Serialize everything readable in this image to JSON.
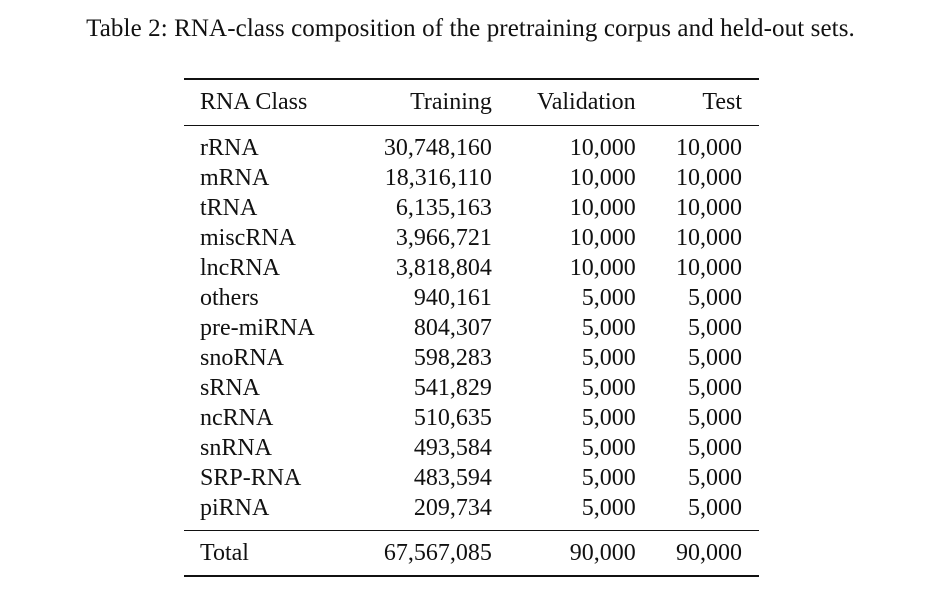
{
  "caption": "Table 2: RNA-class composition of the pretraining corpus and held-out sets.",
  "table": {
    "headers": [
      "RNA Class",
      "Training",
      "Validation",
      "Test"
    ],
    "rows": [
      [
        "rRNA",
        "30,748,160",
        "10,000",
        "10,000"
      ],
      [
        "mRNA",
        "18,316,110",
        "10,000",
        "10,000"
      ],
      [
        "tRNA",
        "6,135,163",
        "10,000",
        "10,000"
      ],
      [
        "miscRNA",
        "3,966,721",
        "10,000",
        "10,000"
      ],
      [
        "lncRNA",
        "3,818,804",
        "10,000",
        "10,000"
      ],
      [
        "others",
        "940,161",
        "5,000",
        "5,000"
      ],
      [
        "pre-miRNA",
        "804,307",
        "5,000",
        "5,000"
      ],
      [
        "snoRNA",
        "598,283",
        "5,000",
        "5,000"
      ],
      [
        "sRNA",
        "541,829",
        "5,000",
        "5,000"
      ],
      [
        "ncRNA",
        "510,635",
        "5,000",
        "5,000"
      ],
      [
        "snRNA",
        "493,584",
        "5,000",
        "5,000"
      ],
      [
        "SRP-RNA",
        "483,594",
        "5,000",
        "5,000"
      ],
      [
        "piRNA",
        "209,734",
        "5,000",
        "5,000"
      ]
    ],
    "total": [
      "Total",
      "67,567,085",
      "90,000",
      "90,000"
    ]
  }
}
